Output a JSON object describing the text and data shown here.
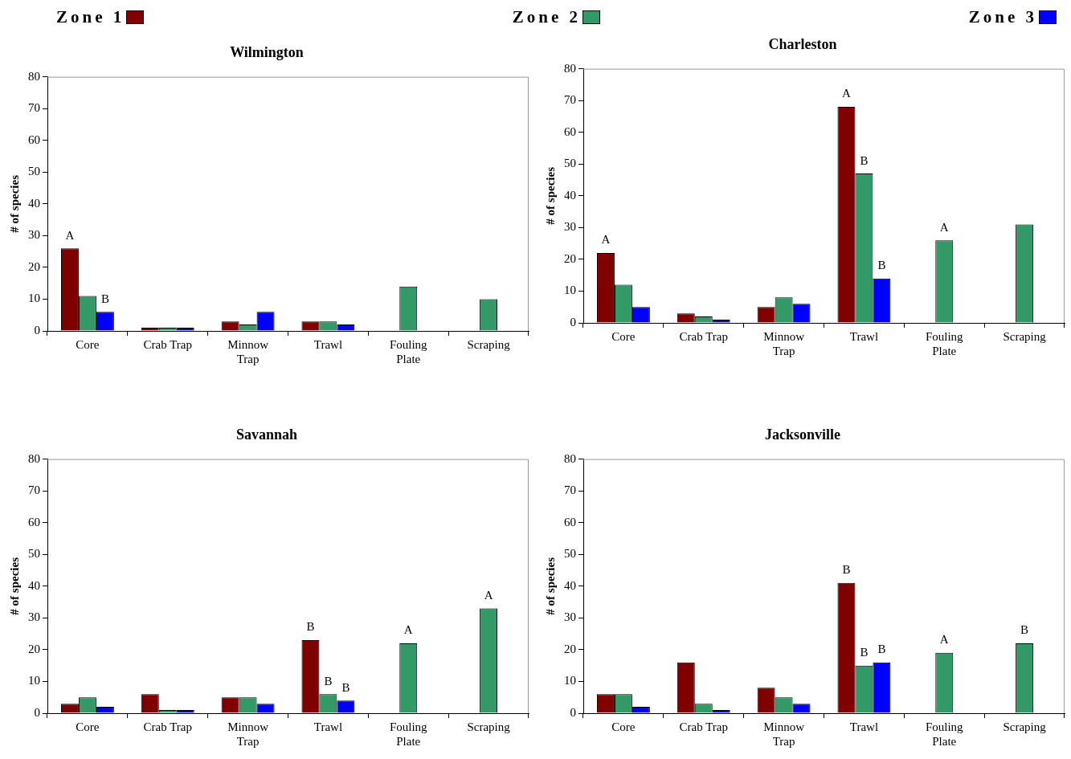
{
  "chart_data": [
    {
      "type": "bar",
      "title": "Wilmington",
      "ylabel": "# of species",
      "categories": [
        "Core",
        "Crab Trap",
        "Minnow Trap",
        "Trawl",
        "Fouling Plate",
        "Scraping"
      ],
      "series": [
        {
          "name": "Zone 1",
          "color": "#800000",
          "values": [
            26,
            1,
            3,
            3,
            null,
            null
          ],
          "value_labels": [
            "A",
            null,
            null,
            null,
            null,
            null
          ]
        },
        {
          "name": "Zone 2",
          "color": "#339966",
          "values": [
            11,
            1,
            2,
            3,
            14,
            10
          ]
        },
        {
          "name": "Zone 3",
          "color": "#0000ff",
          "values": [
            6,
            1,
            6,
            2,
            null,
            null
          ],
          "value_labels": [
            "B",
            null,
            null,
            null,
            null,
            null
          ]
        }
      ],
      "ylim": [
        0,
        80
      ],
      "yticks": [
        0,
        10,
        20,
        30,
        40,
        50,
        60,
        70,
        80
      ],
      "grid": false,
      "legend": "top"
    },
    {
      "type": "bar",
      "title": "Charleston",
      "ylabel": "# of species",
      "categories": [
        "Core",
        "Crab Trap",
        "Minnow Trap",
        "Trawl",
        "Fouling Plate",
        "Scraping"
      ],
      "series": [
        {
          "color": "#800000",
          "values": [
            22,
            3,
            5,
            68,
            null,
            null
          ],
          "value_labels": [
            "A",
            null,
            null,
            "A",
            null,
            null
          ]
        },
        {
          "color": "#339966",
          "values": [
            12,
            2,
            8,
            47,
            26,
            31
          ],
          "value_labels": [
            null,
            null,
            null,
            "B",
            "A",
            null
          ]
        },
        {
          "color": "#0000ff",
          "values": [
            5,
            1,
            6,
            14,
            null,
            null
          ],
          "value_labels": [
            null,
            null,
            null,
            "B",
            null,
            null
          ]
        }
      ],
      "ylim": [
        0,
        80
      ],
      "yticks": [
        0,
        10,
        20,
        30,
        40,
        50,
        60,
        70,
        80
      ],
      "grid": false
    },
    {
      "type": "bar",
      "title": "Savannah",
      "ylabel": "# of species",
      "categories": [
        "Core",
        "Crab Trap",
        "Minnow Trap",
        "Trawl",
        "Fouling Plate",
        "Scraping"
      ],
      "series": [
        {
          "color": "#800000",
          "values": [
            3,
            6,
            5,
            23,
            null,
            null
          ],
          "value_labels": [
            null,
            null,
            null,
            "B",
            null,
            null
          ]
        },
        {
          "color": "#339966",
          "values": [
            5,
            1,
            5,
            6,
            22,
            33
          ],
          "value_labels": [
            null,
            null,
            null,
            "B",
            "A",
            "A"
          ]
        },
        {
          "color": "#0000ff",
          "values": [
            2,
            1,
            3,
            4,
            null,
            null
          ],
          "value_labels": [
            null,
            null,
            null,
            "B",
            null,
            null
          ]
        }
      ],
      "ylim": [
        0,
        80
      ],
      "yticks": [
        0,
        10,
        20,
        30,
        40,
        50,
        60,
        70,
        80
      ],
      "grid": false
    },
    {
      "type": "bar",
      "title": "Jacksonville",
      "ylabel": "# of species",
      "categories": [
        "Core",
        "Crab Trap",
        "Minnow Trap",
        "Trawl",
        "Fouling Plate",
        "Scraping"
      ],
      "series": [
        {
          "color": "#800000",
          "values": [
            6,
            16,
            8,
            41,
            null,
            null
          ],
          "value_labels": [
            null,
            null,
            null,
            "B",
            null,
            null
          ]
        },
        {
          "color": "#339966",
          "values": [
            6,
            3,
            5,
            15,
            19,
            22
          ],
          "value_labels": [
            null,
            null,
            null,
            "B",
            "A",
            "B"
          ]
        },
        {
          "color": "#0000ff",
          "values": [
            2,
            1,
            3,
            16,
            null,
            null
          ],
          "value_labels": [
            null,
            null,
            null,
            "B",
            null,
            null
          ]
        }
      ],
      "ylim": [
        0,
        80
      ],
      "yticks": [
        0,
        10,
        20,
        30,
        40,
        50,
        60,
        70,
        80
      ],
      "grid": false
    }
  ]
}
